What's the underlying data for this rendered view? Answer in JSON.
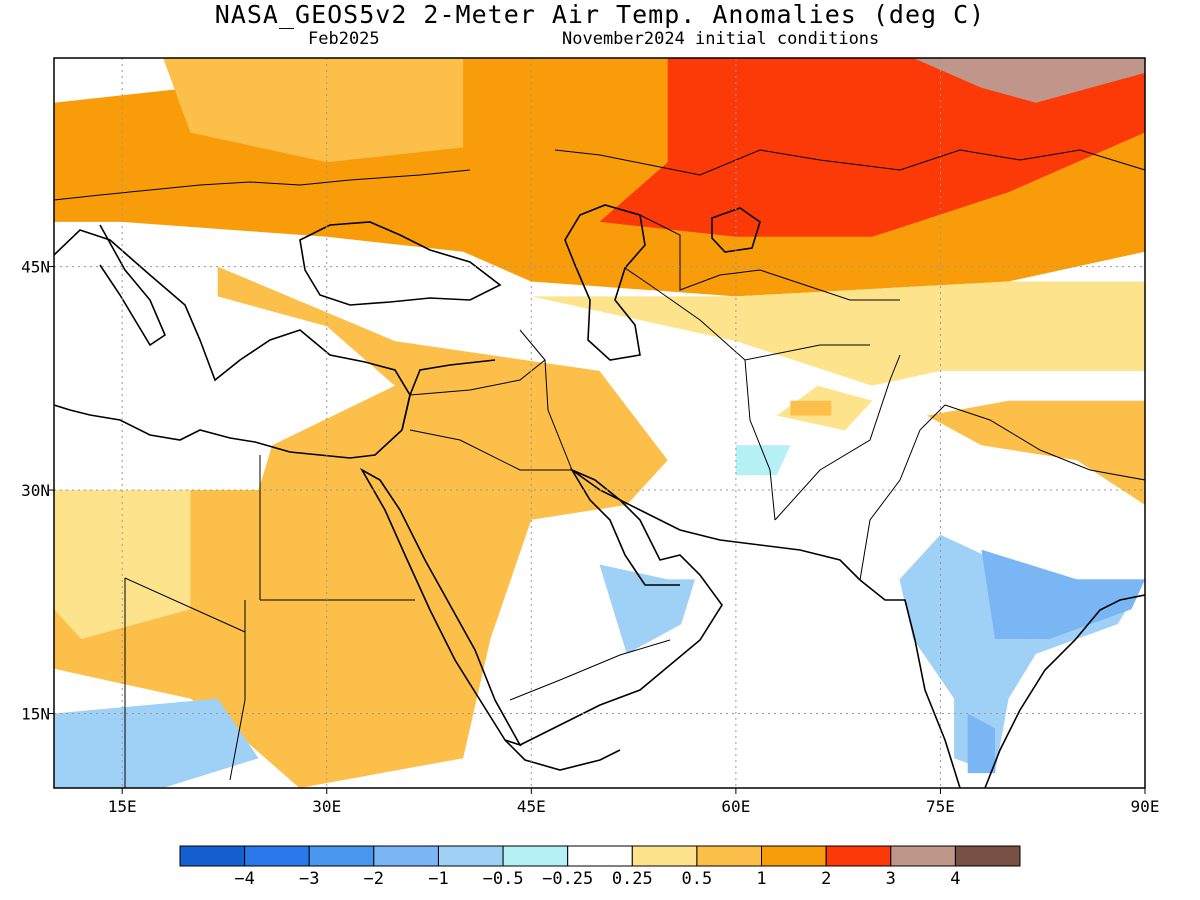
{
  "header": {
    "title": "NASA_GEOS5v2 2-Meter Air Temp. Anomalies (deg C)",
    "valid_month": "Feb2025",
    "init_conditions": "November2024 initial conditions"
  },
  "map": {
    "lon_range": [
      10,
      90
    ],
    "lat_range": [
      10,
      59
    ],
    "lon_ticks": [
      {
        "value": 15,
        "label": "15E"
      },
      {
        "value": 30,
        "label": "30E"
      },
      {
        "value": 45,
        "label": "45E"
      },
      {
        "value": 60,
        "label": "60E"
      },
      {
        "value": 75,
        "label": "75E"
      },
      {
        "value": 90,
        "label": "90E"
      }
    ],
    "lat_ticks": [
      {
        "value": 45,
        "label": "45N"
      },
      {
        "value": 30,
        "label": "30N"
      },
      {
        "value": 15,
        "label": "15N"
      }
    ]
  },
  "colorbar": {
    "colors": [
      "#1560d0",
      "#2b78ec",
      "#4796f0",
      "#7ab6f4",
      "#9fd0f6",
      "#b4f0f4",
      "#ffffff",
      "#fde48c",
      "#fbbf4a",
      "#f89c0a",
      "#fb3a08",
      "#c0968a",
      "#785046"
    ],
    "labels": [
      "-4",
      "-3",
      "-2",
      "-1",
      "-0.5",
      "-0.25",
      "0.25",
      "0.5",
      "1",
      "2",
      "3",
      "4"
    ]
  },
  "anomaly_regions": [
    {
      "level": "2",
      "color": "#f89c0a",
      "polygon": [
        [
          10,
          56
        ],
        [
          40,
          59
        ],
        [
          90,
          59
        ],
        [
          90,
          46
        ],
        [
          80,
          44
        ],
        [
          60,
          43
        ],
        [
          45,
          44
        ],
        [
          40,
          46
        ],
        [
          30,
          47
        ],
        [
          15,
          48
        ],
        [
          10,
          48
        ]
      ]
    },
    {
      "level": "1",
      "color": "#fbbf4a",
      "polygon": [
        [
          18,
          59
        ],
        [
          40,
          59
        ],
        [
          40,
          53
        ],
        [
          30,
          52
        ],
        [
          20,
          54
        ]
      ]
    },
    {
      "level": "3",
      "color": "#fb3a08",
      "polygon": [
        [
          55,
          59
        ],
        [
          90,
          59
        ],
        [
          90,
          54
        ],
        [
          85,
          52
        ],
        [
          80,
          50
        ],
        [
          70,
          47
        ],
        [
          60,
          47
        ],
        [
          50,
          48
        ],
        [
          55,
          52
        ]
      ]
    },
    {
      "level": "4",
      "color": "#c0968a",
      "polygon": [
        [
          73,
          59
        ],
        [
          90,
          59
        ],
        [
          90,
          58
        ],
        [
          82,
          56
        ],
        [
          78,
          57
        ]
      ]
    },
    {
      "level": "1",
      "color": "#fbbf4a",
      "polygon": [
        [
          22,
          45
        ],
        [
          35,
          40
        ],
        [
          50,
          38
        ],
        [
          55,
          32
        ],
        [
          52,
          29
        ],
        [
          45,
          28
        ],
        [
          42,
          20
        ],
        [
          40,
          12
        ],
        [
          28,
          10
        ],
        [
          23,
          14
        ],
        [
          20,
          16
        ],
        [
          10,
          18
        ],
        [
          10,
          30
        ],
        [
          25,
          30
        ],
        [
          26,
          33
        ],
        [
          35,
          37
        ],
        [
          30,
          41
        ],
        [
          22,
          43
        ]
      ]
    },
    {
      "level": "0.5",
      "color": "#fde48c",
      "polygon": [
        [
          10,
          30
        ],
        [
          20,
          30
        ],
        [
          20,
          22
        ],
        [
          12,
          20
        ],
        [
          10,
          22
        ]
      ]
    },
    {
      "level": "0.5",
      "color": "#fde48c",
      "polygon": [
        [
          45,
          43
        ],
        [
          60,
          40
        ],
        [
          70,
          37
        ],
        [
          75,
          38
        ],
        [
          90,
          38
        ],
        [
          90,
          44
        ],
        [
          80,
          44
        ],
        [
          60,
          43
        ]
      ]
    },
    {
      "level": "0.5",
      "color": "#fde48c",
      "polygon": [
        [
          63,
          35
        ],
        [
          68,
          34
        ],
        [
          70,
          36
        ],
        [
          66,
          37
        ]
      ]
    },
    {
      "level": "1",
      "color": "#fbbf4a",
      "polygon": [
        [
          64,
          35
        ],
        [
          67,
          35
        ],
        [
          67,
          36
        ],
        [
          64,
          36
        ]
      ]
    },
    {
      "level": "1",
      "color": "#fbbf4a",
      "polygon": [
        [
          74,
          35
        ],
        [
          78,
          33
        ],
        [
          85,
          32
        ],
        [
          90,
          29
        ],
        [
          90,
          36
        ],
        [
          80,
          36
        ]
      ]
    },
    {
      "level": "-0.5",
      "color": "#9fd0f6",
      "polygon": [
        [
          75,
          27
        ],
        [
          82,
          24
        ],
        [
          90,
          24
        ],
        [
          88,
          21
        ],
        [
          82,
          19
        ],
        [
          80,
          16
        ],
        [
          79,
          11
        ],
        [
          76,
          12
        ],
        [
          76,
          16
        ],
        [
          73,
          20
        ],
        [
          72,
          24
        ]
      ]
    },
    {
      "level": "-1",
      "color": "#7ab6f4",
      "polygon": [
        [
          78,
          26
        ],
        [
          85,
          24
        ],
        [
          90,
          24
        ],
        [
          89,
          22
        ],
        [
          83,
          20
        ],
        [
          79,
          20
        ]
      ]
    },
    {
      "level": "-1",
      "color": "#7ab6f4",
      "polygon": [
        [
          77,
          15
        ],
        [
          79,
          14
        ],
        [
          79,
          11
        ],
        [
          77,
          11
        ]
      ]
    },
    {
      "level": "-0.5",
      "color": "#9fd0f6",
      "polygon": [
        [
          50,
          25
        ],
        [
          55,
          24
        ],
        [
          57,
          24
        ],
        [
          56,
          21
        ],
        [
          52,
          19
        ],
        [
          51,
          22
        ]
      ]
    },
    {
      "level": "-0.5",
      "color": "#9fd0f6",
      "polygon": [
        [
          10,
          15
        ],
        [
          22,
          16
        ],
        [
          25,
          12
        ],
        [
          18,
          10
        ],
        [
          10,
          10
        ]
      ]
    },
    {
      "level": "-0.25",
      "color": "#b4f0f4",
      "polygon": [
        [
          60,
          33
        ],
        [
          64,
          33
        ],
        [
          63,
          31
        ],
        [
          60,
          31
        ]
      ]
    }
  ]
}
